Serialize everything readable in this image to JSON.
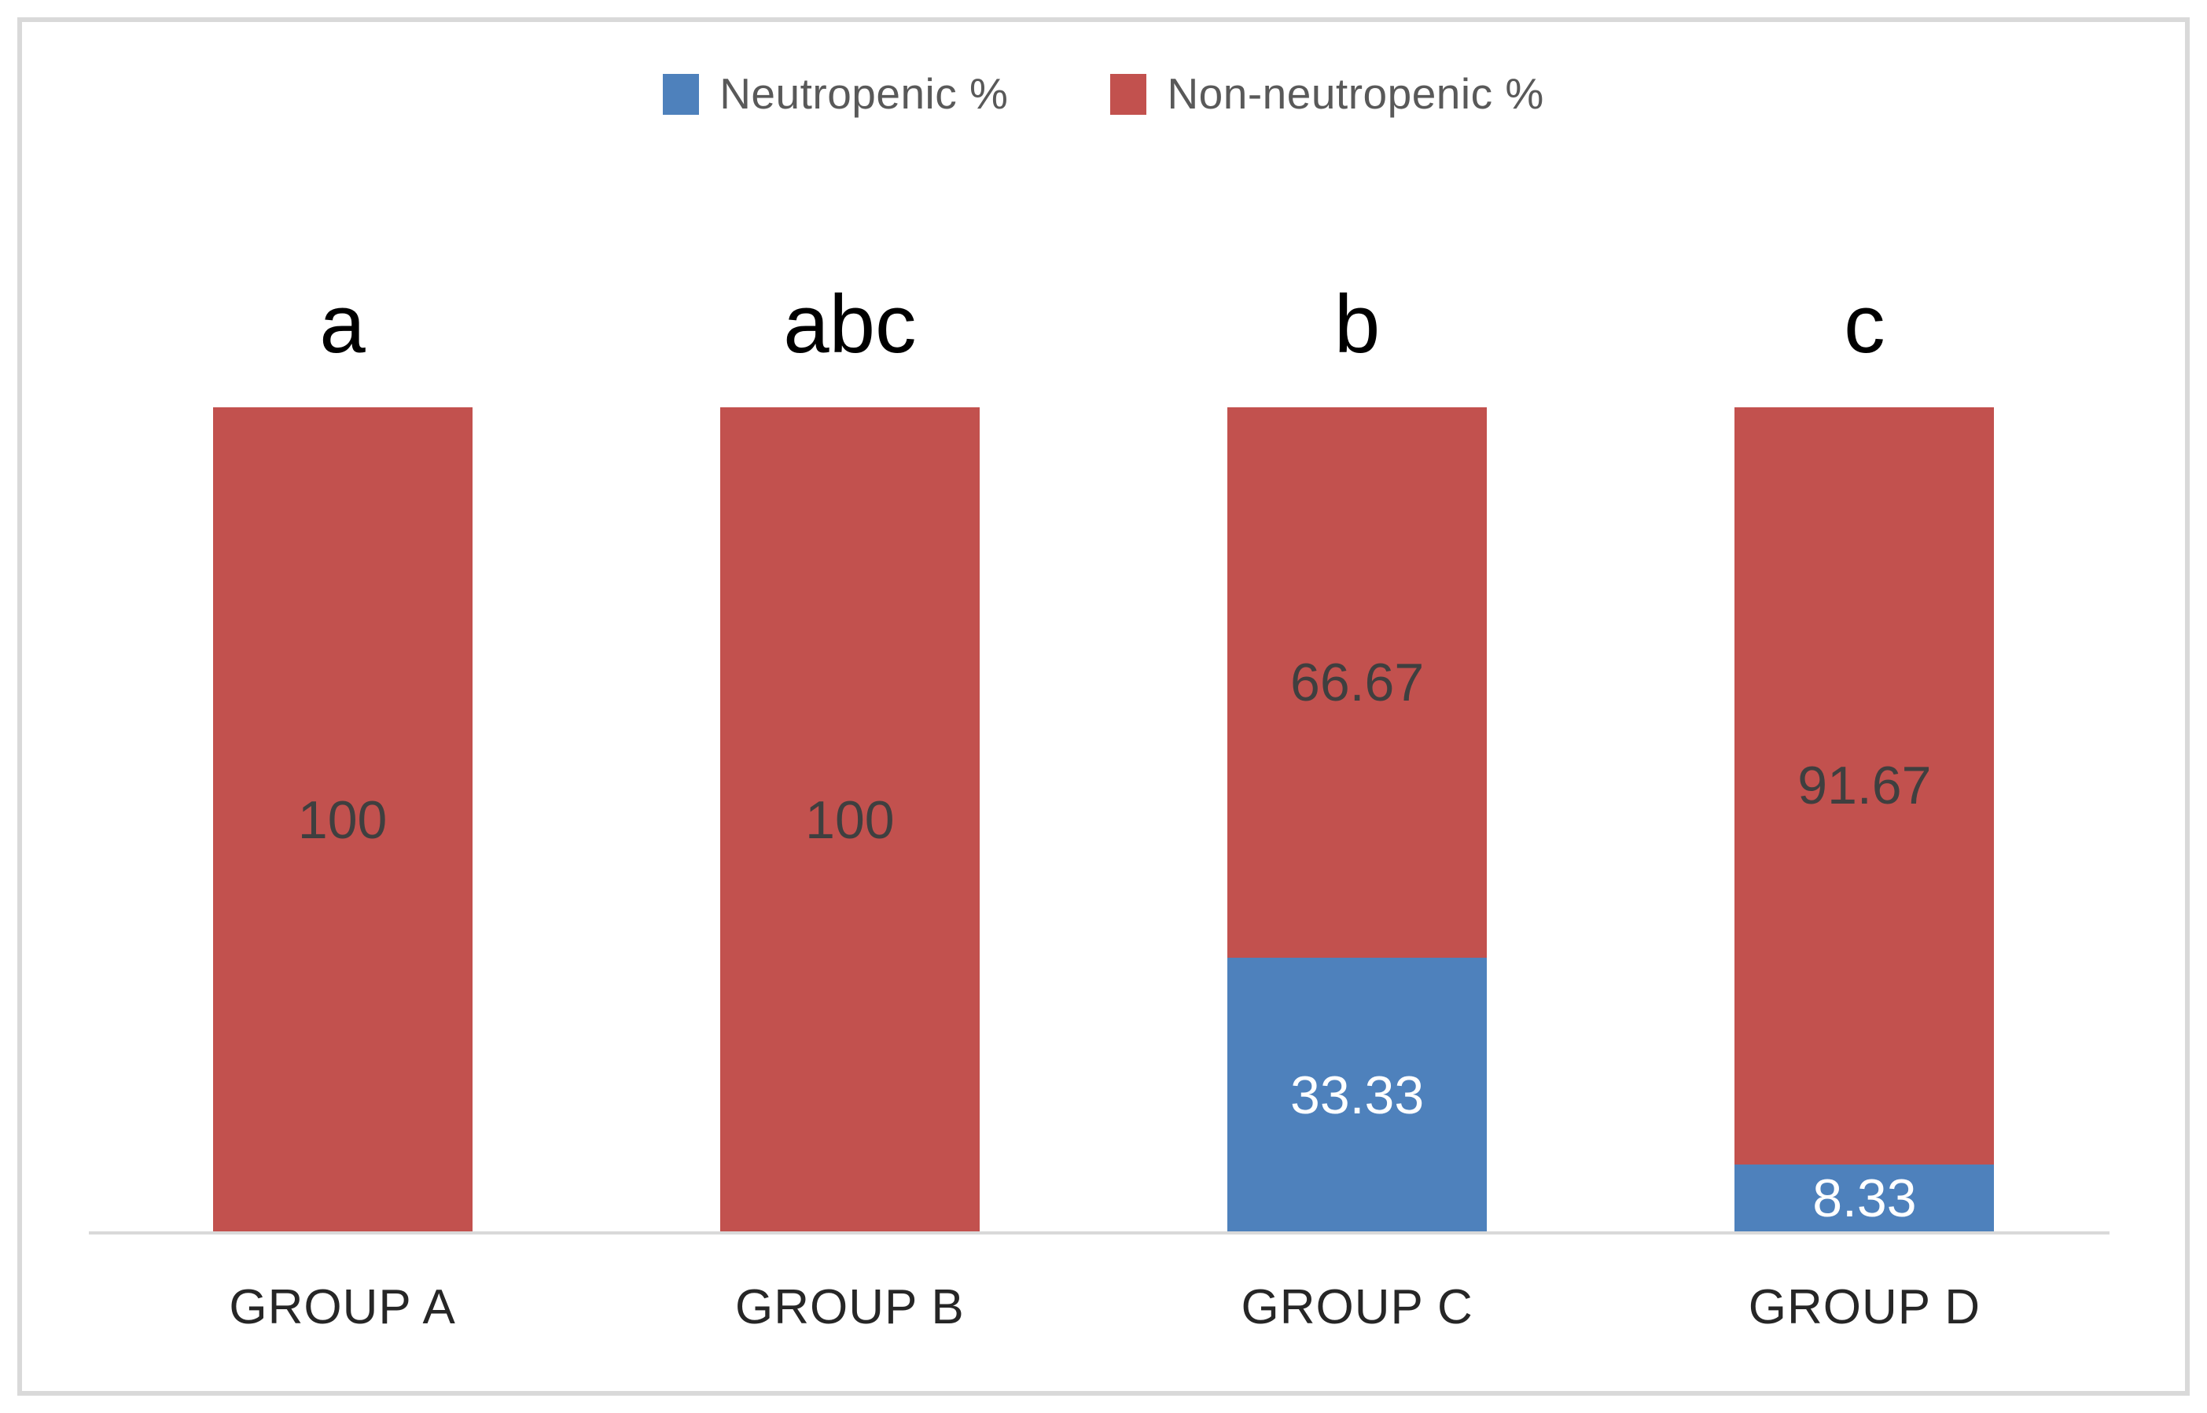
{
  "chart_data": {
    "type": "bar",
    "stacked": true,
    "categories": [
      "GROUP A",
      "GROUP B",
      "GROUP C",
      "GROUP D"
    ],
    "series": [
      {
        "name": "Neutropenic %",
        "color": "#4E81BC",
        "label_color": "#FFFFFF",
        "values": [
          0,
          0,
          33.33,
          8.33
        ]
      },
      {
        "name": "Non-neutropenic %",
        "color": "#C2514E",
        "label_color": "#3F3F3F",
        "values": [
          100,
          100,
          66.67,
          91.67
        ]
      }
    ],
    "significance_letters": [
      "a",
      "abc",
      "b",
      "c"
    ],
    "ylim": [
      0,
      100
    ],
    "grid": false,
    "legend_position": "top",
    "axis_line_color": "#D9D9D9",
    "frame_color": "#D9D9D9"
  }
}
